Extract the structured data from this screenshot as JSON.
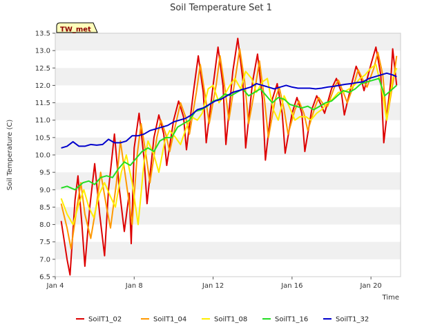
{
  "chart_data": {
    "type": "line",
    "title": "Soil Temperature Set 1",
    "xlabel": "Time",
    "ylabel": "Soil Temperature (C)",
    "badge": "TW_met",
    "xlim": [
      4,
      21.5
    ],
    "ylim": [
      6.5,
      13.5
    ],
    "x_ticks": [
      4,
      8,
      12,
      16,
      20
    ],
    "x_tick_labels": [
      "Jan 4",
      "Jan 8",
      "Jan 12",
      "Jan 16",
      "Jan 20"
    ],
    "y_ticks": [
      6.5,
      7.0,
      7.5,
      8.0,
      8.5,
      9.0,
      9.5,
      10.0,
      10.5,
      11.0,
      11.5,
      12.0,
      12.5,
      13.0,
      13.5
    ],
    "y_tick_labels": [
      "6.5",
      "7.0",
      "7.5",
      "8.0",
      "8.5",
      "9.0",
      "9.5",
      "10.0",
      "10.5",
      "11.0",
      "11.5",
      "12.0",
      "12.5",
      "13.0",
      "13.5"
    ],
    "grid": "horizontal bands",
    "legend_position": "bottom",
    "series": [
      {
        "name": "SoilT1_02",
        "color": "#dd0000",
        "x": [
          4.3,
          4.6,
          4.75,
          5.0,
          5.15,
          5.35,
          5.5,
          5.75,
          6.0,
          6.25,
          6.5,
          6.7,
          7.0,
          7.25,
          7.5,
          7.75,
          7.85,
          8.0,
          8.25,
          8.5,
          8.65,
          9.0,
          9.25,
          9.5,
          9.65,
          10.0,
          10.25,
          10.5,
          10.65,
          11.0,
          11.25,
          11.5,
          11.65,
          12.0,
          12.25,
          12.5,
          12.65,
          13.0,
          13.25,
          13.5,
          13.65,
          14.0,
          14.25,
          14.5,
          14.65,
          15.0,
          15.25,
          15.5,
          15.65,
          16.0,
          16.25,
          16.5,
          16.65,
          17.0,
          17.25,
          17.5,
          17.65,
          18.0,
          18.25,
          18.5,
          18.65,
          19.0,
          19.25,
          19.5,
          19.65,
          20.0,
          20.25,
          20.5,
          20.65,
          21.0,
          21.1,
          21.3
        ],
        "values": [
          8.1,
          7.0,
          6.55,
          8.7,
          9.4,
          8.0,
          6.8,
          8.5,
          9.75,
          8.3,
          7.1,
          9.0,
          10.6,
          9.0,
          7.8,
          8.9,
          7.45,
          10.2,
          11.2,
          9.9,
          8.6,
          10.5,
          11.15,
          10.6,
          9.7,
          11.0,
          11.55,
          11.1,
          10.15,
          11.8,
          12.85,
          11.8,
          10.35,
          12.0,
          13.1,
          12.0,
          10.3,
          12.4,
          13.35,
          12.2,
          10.2,
          12.1,
          12.9,
          11.6,
          9.85,
          11.6,
          12.05,
          11.2,
          10.05,
          11.2,
          11.65,
          11.2,
          10.1,
          11.3,
          11.7,
          11.4,
          11.2,
          11.9,
          12.2,
          11.8,
          11.15,
          12.0,
          12.55,
          12.2,
          11.85,
          12.6,
          13.1,
          12.3,
          10.35,
          12.1,
          13.05,
          12.0
        ]
      },
      {
        "name": "SoilT1_04",
        "color": "#ff9900",
        "x": [
          4.3,
          4.6,
          4.8,
          5.1,
          5.3,
          5.5,
          5.8,
          6.1,
          6.3,
          6.6,
          6.8,
          7.1,
          7.3,
          7.6,
          7.9,
          8.15,
          8.35,
          8.6,
          8.8,
          9.15,
          9.35,
          9.6,
          9.8,
          10.15,
          10.35,
          10.6,
          10.8,
          11.15,
          11.35,
          11.6,
          11.8,
          12.15,
          12.35,
          12.6,
          12.8,
          13.15,
          13.35,
          13.6,
          13.8,
          14.15,
          14.35,
          14.6,
          14.8,
          15.15,
          15.35,
          15.6,
          15.8,
          16.15,
          16.35,
          16.6,
          16.8,
          17.15,
          17.35,
          17.6,
          17.8,
          18.15,
          18.35,
          18.6,
          18.8,
          19.15,
          19.35,
          19.6,
          19.8,
          20.15,
          20.35,
          20.6,
          20.8,
          21.15,
          21.3
        ],
        "values": [
          8.6,
          7.9,
          7.3,
          8.5,
          9.2,
          8.3,
          7.6,
          8.6,
          9.5,
          8.5,
          7.9,
          9.2,
          10.4,
          9.2,
          8.0,
          10.0,
          10.9,
          10.0,
          9.2,
          10.5,
          11.0,
          10.6,
          10.1,
          11.0,
          11.5,
          11.1,
          10.6,
          11.8,
          12.6,
          11.7,
          10.9,
          12.0,
          12.85,
          11.9,
          11.0,
          12.3,
          13.05,
          12.1,
          10.9,
          12.0,
          12.7,
          11.6,
          10.5,
          11.6,
          11.95,
          11.3,
          10.6,
          11.3,
          11.55,
          11.2,
          10.7,
          11.35,
          11.65,
          11.45,
          11.4,
          11.95,
          12.15,
          11.8,
          11.5,
          12.05,
          12.45,
          12.15,
          11.95,
          12.5,
          12.95,
          12.3,
          11.0,
          12.2,
          12.85
        ]
      },
      {
        "name": "SoilT1_08",
        "color": "#ffee00",
        "x": [
          4.3,
          4.6,
          4.9,
          5.2,
          5.45,
          5.7,
          5.95,
          6.25,
          6.5,
          6.8,
          7.05,
          7.35,
          7.6,
          7.9,
          8.2,
          8.5,
          8.7,
          9.0,
          9.25,
          9.55,
          9.8,
          10.1,
          10.35,
          10.65,
          10.9,
          11.2,
          11.45,
          11.75,
          12.0,
          12.3,
          12.55,
          12.85,
          13.1,
          13.4,
          13.65,
          13.95,
          14.2,
          14.5,
          14.75,
          15.05,
          15.3,
          15.6,
          15.85,
          16.15,
          16.4,
          16.7,
          16.95,
          17.25,
          17.5,
          17.8,
          18.05,
          18.35,
          18.6,
          18.9,
          19.15,
          19.45,
          19.7,
          20.0,
          20.25,
          20.55,
          20.8,
          21.1,
          21.3
        ],
        "values": [
          8.75,
          8.3,
          8.0,
          8.6,
          9.0,
          8.5,
          8.2,
          8.9,
          9.2,
          8.8,
          8.5,
          9.5,
          10.0,
          9.2,
          8.0,
          9.8,
          10.4,
          10.0,
          9.5,
          10.4,
          10.7,
          10.5,
          10.3,
          10.8,
          11.1,
          11.0,
          11.2,
          11.9,
          12.0,
          11.5,
          11.7,
          12.0,
          12.2,
          11.9,
          12.4,
          12.2,
          11.8,
          12.1,
          12.2,
          11.3,
          11.0,
          11.7,
          11.4,
          11.0,
          11.1,
          11.1,
          11.0,
          11.2,
          11.3,
          11.5,
          11.6,
          11.8,
          11.8,
          11.9,
          12.0,
          12.2,
          12.3,
          12.5,
          12.6,
          11.9,
          11.0,
          12.2,
          12.5
        ]
      },
      {
        "name": "SoilT1_16",
        "color": "#22dd22",
        "x": [
          4.3,
          4.6,
          5.0,
          5.4,
          5.7,
          6.0,
          6.3,
          6.6,
          6.9,
          7.2,
          7.5,
          7.8,
          8.1,
          8.4,
          8.7,
          9.0,
          9.3,
          9.6,
          9.9,
          10.2,
          10.5,
          10.8,
          11.1,
          11.4,
          11.7,
          12.0,
          12.3,
          12.6,
          12.9,
          13.2,
          13.5,
          13.8,
          14.1,
          14.4,
          14.7,
          15.0,
          15.3,
          15.6,
          15.9,
          16.2,
          16.5,
          16.8,
          17.1,
          17.4,
          17.7,
          18.0,
          18.3,
          18.6,
          18.9,
          19.2,
          19.5,
          19.8,
          20.1,
          20.4,
          20.7,
          21.0,
          21.3
        ],
        "values": [
          9.05,
          9.1,
          9.0,
          9.2,
          9.25,
          9.15,
          9.35,
          9.4,
          9.35,
          9.6,
          9.8,
          9.7,
          9.9,
          10.1,
          10.2,
          10.1,
          10.4,
          10.5,
          10.5,
          10.8,
          10.9,
          11.0,
          11.25,
          11.3,
          11.4,
          11.55,
          11.6,
          11.75,
          11.7,
          11.8,
          11.9,
          11.7,
          11.8,
          11.9,
          11.7,
          11.5,
          11.65,
          11.6,
          11.45,
          11.4,
          11.35,
          11.4,
          11.3,
          11.4,
          11.5,
          11.55,
          11.7,
          11.85,
          11.8,
          11.9,
          12.05,
          12.1,
          12.15,
          12.2,
          11.7,
          11.85,
          12.0
        ]
      },
      {
        "name": "SoilT1_32",
        "color": "#0000cc",
        "x": [
          4.3,
          4.6,
          4.9,
          5.2,
          5.5,
          5.8,
          6.1,
          6.4,
          6.7,
          7.0,
          7.3,
          7.6,
          7.9,
          8.2,
          8.5,
          8.8,
          9.1,
          9.4,
          9.7,
          10.0,
          10.3,
          10.6,
          10.9,
          11.2,
          11.5,
          11.8,
          12.1,
          12.4,
          12.7,
          13.0,
          13.3,
          13.6,
          13.9,
          14.2,
          14.5,
          14.8,
          15.1,
          15.4,
          15.7,
          16.0,
          16.3,
          16.6,
          16.9,
          17.2,
          17.5,
          17.8,
          18.1,
          18.4,
          18.7,
          19.0,
          19.3,
          19.6,
          19.9,
          20.2,
          20.5,
          20.8,
          21.1,
          21.3
        ],
        "values": [
          10.2,
          10.25,
          10.38,
          10.25,
          10.25,
          10.3,
          10.28,
          10.3,
          10.45,
          10.35,
          10.35,
          10.4,
          10.55,
          10.55,
          10.6,
          10.7,
          10.75,
          10.8,
          10.85,
          10.95,
          11.0,
          11.05,
          11.15,
          11.3,
          11.35,
          11.45,
          11.55,
          11.6,
          11.7,
          11.8,
          11.85,
          11.9,
          11.95,
          12.05,
          12.0,
          11.95,
          11.9,
          11.95,
          12.0,
          11.95,
          11.92,
          11.92,
          11.92,
          11.9,
          11.92,
          11.95,
          11.97,
          12.0,
          12.03,
          12.05,
          12.08,
          12.1,
          12.2,
          12.25,
          12.3,
          12.35,
          12.3,
          12.25
        ]
      }
    ]
  }
}
